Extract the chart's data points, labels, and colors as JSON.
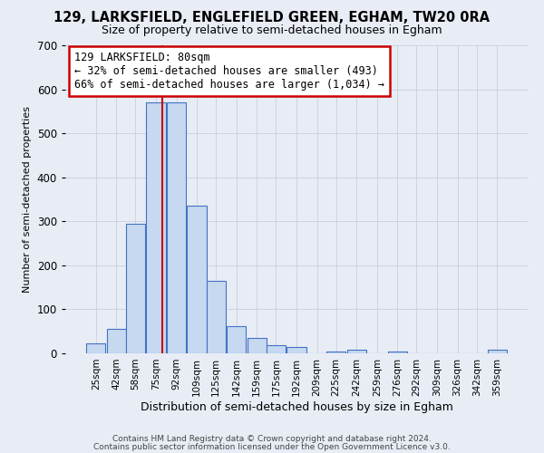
{
  "title": "129, LARKSFIELD, ENGLEFIELD GREEN, EGHAM, TW20 0RA",
  "subtitle": "Size of property relative to semi-detached houses in Egham",
  "xlabel": "Distribution of semi-detached houses by size in Egham",
  "ylabel": "Number of semi-detached properties",
  "bar_labels": [
    "25sqm",
    "42sqm",
    "58sqm",
    "75sqm",
    "92sqm",
    "109sqm",
    "125sqm",
    "142sqm",
    "159sqm",
    "175sqm",
    "192sqm",
    "209sqm",
    "225sqm",
    "242sqm",
    "259sqm",
    "276sqm",
    "292sqm",
    "309sqm",
    "326sqm",
    "342sqm",
    "359sqm"
  ],
  "bar_values": [
    22,
    55,
    295,
    570,
    570,
    335,
    165,
    62,
    35,
    18,
    14,
    0,
    5,
    8,
    0,
    5,
    0,
    0,
    0,
    0,
    8
  ],
  "bar_color": "#c6d9f0",
  "bar_edge_color": "#4472c4",
  "redline_color": "#cc0000",
  "annotation_title": "129 LARKSFIELD: 80sqm",
  "annotation_line1": "← 32% of semi-detached houses are smaller (493)",
  "annotation_line2": "66% of semi-detached houses are larger (1,034) →",
  "annotation_box_color": "#ffffff",
  "annotation_box_edge_color": "#cc0000",
  "ylim": [
    0,
    700
  ],
  "yticks": [
    0,
    100,
    200,
    300,
    400,
    500,
    600,
    700
  ],
  "grid_color": "#c8d0de",
  "bg_color": "#e8ecf5",
  "footer1": "Contains HM Land Registry data © Crown copyright and database right 2024.",
  "footer2": "Contains public sector information licensed under the Open Government Licence v3.0."
}
